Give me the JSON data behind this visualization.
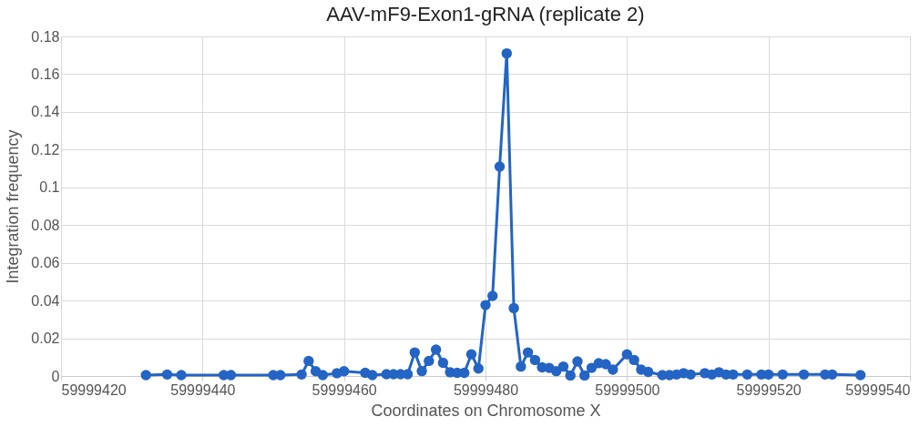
{
  "chart_data": {
    "type": "line",
    "title": "AAV-mF9-Exon1-gRNA (replicate 2)",
    "xlabel": "Coordinates on Chromosome X",
    "ylabel": "Integration frequency",
    "x": [
      59999432,
      59999435,
      59999437,
      59999443,
      59999444,
      59999450,
      59999451,
      59999454,
      59999455,
      59999456,
      59999457,
      59999459,
      59999460,
      59999463,
      59999464,
      59999466,
      59999467,
      59999468,
      59999469,
      59999470,
      59999471,
      59999472,
      59999473,
      59999474,
      59999475,
      59999476,
      59999477,
      59999478,
      59999479,
      59999480,
      59999481,
      59999482,
      59999483,
      59999484,
      59999485,
      59999486,
      59999487,
      59999488,
      59999489,
      59999490,
      59999491,
      59999492,
      59999493,
      59999494,
      59999495,
      59999496,
      59999497,
      59999498,
      59999500,
      59999501,
      59999502,
      59999503,
      59999505,
      59999506,
      59999507,
      59999508,
      59999509,
      59999511,
      59999512,
      59999513,
      59999514,
      59999515,
      59999517,
      59999519,
      59999520,
      59999522,
      59999525,
      59999528,
      59999529,
      59999533
    ],
    "series": [
      {
        "color": "#2464c4",
        "values": [
          0.0005,
          0.0008,
          0.0005,
          0.0005,
          0.0005,
          0.0005,
          0.0005,
          0.0008,
          0.008,
          0.0025,
          0.0005,
          0.0015,
          0.0025,
          0.0017,
          0.0005,
          0.001,
          0.001,
          0.001,
          0.001,
          0.0125,
          0.0026,
          0.008,
          0.014,
          0.007,
          0.002,
          0.0017,
          0.0017,
          0.0115,
          0.004,
          0.0376,
          0.0425,
          0.111,
          0.171,
          0.036,
          0.005,
          0.0125,
          0.0085,
          0.0046,
          0.0043,
          0.0026,
          0.005,
          0.0003,
          0.0077,
          0.0003,
          0.0043,
          0.0068,
          0.0063,
          0.0034,
          0.0115,
          0.0085,
          0.0034,
          0.0022,
          0.0005,
          0.0005,
          0.0008,
          0.0015,
          0.0008,
          0.0015,
          0.0008,
          0.002,
          0.0008,
          0.0008,
          0.0008,
          0.0008,
          0.0008,
          0.0008,
          0.0008,
          0.0008,
          0.0008,
          0.0005
        ]
      }
    ],
    "xlim": [
      59999420,
      59999540
    ],
    "xticks": [
      59999420,
      59999440,
      59999460,
      59999480,
      59999500,
      59999520,
      59999540
    ],
    "ylim": [
      0,
      0.18
    ],
    "yticks": [
      0,
      0.02,
      0.04,
      0.06,
      0.08,
      0.1,
      0.12,
      0.14,
      0.16,
      0.18
    ],
    "grid": true,
    "marker": "circle",
    "line_style": "solid"
  }
}
